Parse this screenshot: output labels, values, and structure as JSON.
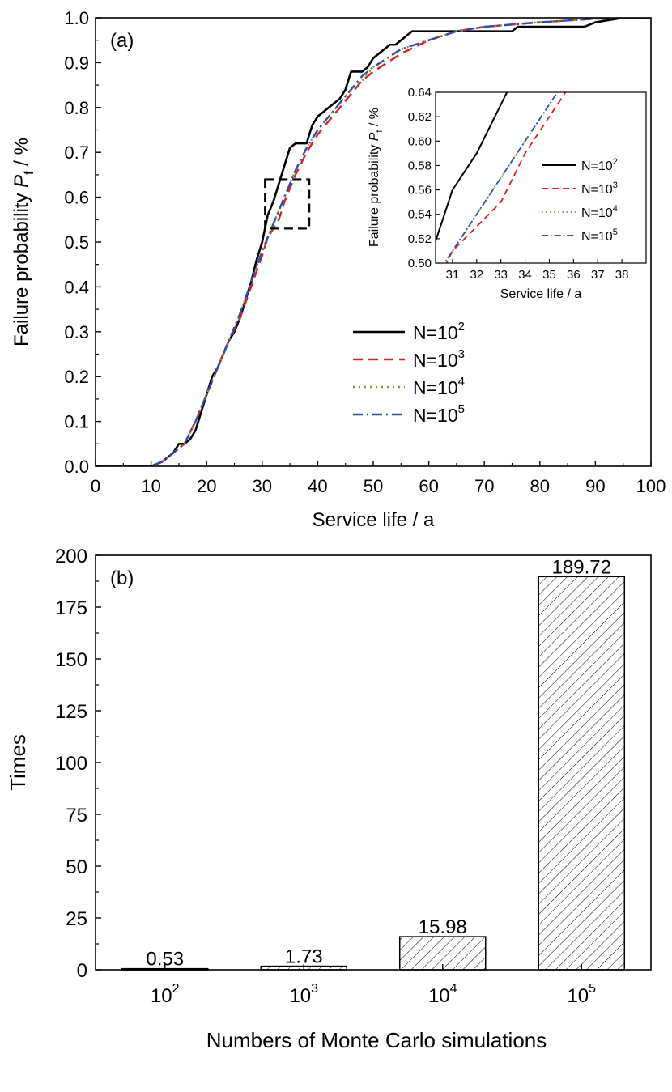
{
  "chart_data": [
    {
      "type": "line",
      "panel_label": "(a)",
      "xlabel": "Service life / a",
      "ylabel_main": "Failure probability ",
      "ylabel_symbol": "P",
      "ylabel_sub": "f",
      "ylabel_unit": " / %",
      "xlim": [
        0,
        100
      ],
      "ylim": [
        0,
        1.0
      ],
      "xticks": [
        "0",
        "10",
        "20",
        "30",
        "40",
        "50",
        "60",
        "70",
        "80",
        "90",
        "100"
      ],
      "yticks": [
        "0.0",
        "0.1",
        "0.2",
        "0.3",
        "0.4",
        "0.5",
        "0.6",
        "0.7",
        "0.8",
        "0.9",
        "1.0"
      ],
      "legend": {
        "position": "bottom-right"
      },
      "series": [
        {
          "base": "N=10",
          "exp": "2",
          "color": "#000000",
          "dash": "solid",
          "points": [
            [
              0,
              0
            ],
            [
              10,
              0
            ],
            [
              11,
              0.005
            ],
            [
              12,
              0.01
            ],
            [
              13,
              0.02
            ],
            [
              14,
              0.03
            ],
            [
              15,
              0.05
            ],
            [
              16,
              0.05
            ],
            [
              17,
              0.06
            ],
            [
              18,
              0.08
            ],
            [
              19,
              0.12
            ],
            [
              20,
              0.16
            ],
            [
              21,
              0.2
            ],
            [
              22,
              0.22
            ],
            [
              23,
              0.25
            ],
            [
              24,
              0.28
            ],
            [
              25,
              0.3
            ],
            [
              26,
              0.33
            ],
            [
              27,
              0.37
            ],
            [
              28,
              0.41
            ],
            [
              29,
              0.46
            ],
            [
              30,
              0.5
            ],
            [
              30.5,
              0.53
            ],
            [
              31,
              0.56
            ],
            [
              32,
              0.59
            ],
            [
              33,
              0.63
            ],
            [
              34,
              0.67
            ],
            [
              35,
              0.71
            ],
            [
              36,
              0.72
            ],
            [
              37,
              0.72
            ],
            [
              38,
              0.72
            ],
            [
              39,
              0.76
            ],
            [
              40,
              0.78
            ],
            [
              41,
              0.79
            ],
            [
              42,
              0.8
            ],
            [
              43,
              0.81
            ],
            [
              44,
              0.82
            ],
            [
              45,
              0.84
            ],
            [
              46,
              0.88
            ],
            [
              47,
              0.88
            ],
            [
              48,
              0.88
            ],
            [
              49,
              0.89
            ],
            [
              50,
              0.91
            ],
            [
              51,
              0.92
            ],
            [
              52,
              0.93
            ],
            [
              53,
              0.94
            ],
            [
              54,
              0.94
            ],
            [
              55,
              0.95
            ],
            [
              56,
              0.96
            ],
            [
              57,
              0.97
            ],
            [
              65,
              0.97
            ],
            [
              70,
              0.97
            ],
            [
              75,
              0.97
            ],
            [
              76,
              0.98
            ],
            [
              80,
              0.98
            ],
            [
              88,
              0.98
            ],
            [
              90,
              0.99
            ],
            [
              95,
              1.0
            ],
            [
              100,
              1.0
            ]
          ]
        },
        {
          "base": "N=10",
          "exp": "3",
          "color": "#e02020",
          "dash": "dashed",
          "points": [
            [
              0,
              0
            ],
            [
              10,
              0
            ],
            [
              12,
              0.01
            ],
            [
              14,
              0.03
            ],
            [
              16,
              0.05
            ],
            [
              18,
              0.1
            ],
            [
              20,
              0.16
            ],
            [
              22,
              0.22
            ],
            [
              24,
              0.28
            ],
            [
              26,
              0.33
            ],
            [
              28,
              0.4
            ],
            [
              30,
              0.47
            ],
            [
              31,
              0.51
            ],
            [
              32,
              0.53
            ],
            [
              33,
              0.55
            ],
            [
              34,
              0.59
            ],
            [
              35,
              0.62
            ],
            [
              36,
              0.65
            ],
            [
              38,
              0.7
            ],
            [
              40,
              0.74
            ],
            [
              42,
              0.77
            ],
            [
              44,
              0.8
            ],
            [
              46,
              0.83
            ],
            [
              48,
              0.86
            ],
            [
              50,
              0.88
            ],
            [
              55,
              0.92
            ],
            [
              60,
              0.95
            ],
            [
              65,
              0.97
            ],
            [
              70,
              0.98
            ],
            [
              80,
              0.99
            ],
            [
              90,
              0.998
            ],
            [
              100,
              1.0
            ]
          ]
        },
        {
          "base": "N=10",
          "exp": "4",
          "color": "#8a9a3c",
          "dash": "dotted",
          "points": [
            [
              0,
              0
            ],
            [
              10,
              0
            ],
            [
              12,
              0.01
            ],
            [
              14,
              0.03
            ],
            [
              16,
              0.05
            ],
            [
              18,
              0.1
            ],
            [
              20,
              0.16
            ],
            [
              22,
              0.22
            ],
            [
              24,
              0.28
            ],
            [
              26,
              0.34
            ],
            [
              28,
              0.41
            ],
            [
              30,
              0.48
            ],
            [
              31,
              0.51
            ],
            [
              32,
              0.54
            ],
            [
              33,
              0.57
            ],
            [
              34,
              0.6
            ],
            [
              35,
              0.63
            ],
            [
              36,
              0.66
            ],
            [
              38,
              0.71
            ],
            [
              40,
              0.75
            ],
            [
              42,
              0.78
            ],
            [
              44,
              0.81
            ],
            [
              46,
              0.84
            ],
            [
              48,
              0.86
            ],
            [
              50,
              0.89
            ],
            [
              55,
              0.93
            ],
            [
              60,
              0.95
            ],
            [
              65,
              0.97
            ],
            [
              70,
              0.98
            ],
            [
              80,
              0.99
            ],
            [
              90,
              0.998
            ],
            [
              100,
              1.0
            ]
          ]
        },
        {
          "base": "N=10",
          "exp": "5",
          "color": "#2a4fb0",
          "dash": "dashdot",
          "points": [
            [
              0,
              0
            ],
            [
              10,
              0
            ],
            [
              12,
              0.01
            ],
            [
              14,
              0.03
            ],
            [
              16,
              0.05
            ],
            [
              18,
              0.1
            ],
            [
              20,
              0.16
            ],
            [
              22,
              0.22
            ],
            [
              24,
              0.28
            ],
            [
              26,
              0.34
            ],
            [
              28,
              0.41
            ],
            [
              30,
              0.48
            ],
            [
              31,
              0.51
            ],
            [
              32,
              0.54
            ],
            [
              33,
              0.57
            ],
            [
              34,
              0.6
            ],
            [
              35,
              0.63
            ],
            [
              36,
              0.66
            ],
            [
              38,
              0.71
            ],
            [
              40,
              0.75
            ],
            [
              42,
              0.78
            ],
            [
              44,
              0.81
            ],
            [
              46,
              0.84
            ],
            [
              48,
              0.87
            ],
            [
              50,
              0.89
            ],
            [
              55,
              0.93
            ],
            [
              60,
              0.95
            ],
            [
              65,
              0.97
            ],
            [
              70,
              0.98
            ],
            [
              80,
              0.99
            ],
            [
              90,
              0.998
            ],
            [
              100,
              1.0
            ]
          ]
        }
      ],
      "zoom_box": {
        "x": [
          30.5,
          38.5
        ],
        "y": [
          0.53,
          0.64
        ]
      },
      "inset": {
        "xlabel": "Service life / a",
        "ylabel_main": "Failure probability  ",
        "ylabel_symbol": "P",
        "ylabel_sub": "f",
        "ylabel_unit": " / %",
        "xlim": [
          30.3,
          39
        ],
        "ylim": [
          0.5,
          0.64
        ],
        "xticks": [
          "31",
          "32",
          "33",
          "34",
          "35",
          "36",
          "37",
          "38"
        ],
        "yticks": [
          "0.50",
          "0.52",
          "0.54",
          "0.56",
          "0.58",
          "0.60",
          "0.62",
          "0.64"
        ]
      }
    },
    {
      "type": "bar",
      "panel_label": "(b)",
      "xlabel": "Numbers of Monte Carlo simulations",
      "ylabel": "Times",
      "ylim": [
        0,
        200
      ],
      "yticks": [
        "0",
        "25",
        "50",
        "75",
        "100",
        "125",
        "150",
        "175",
        "200"
      ],
      "category_base": "10",
      "category_exps": [
        "2",
        "3",
        "4",
        "5"
      ],
      "values": [
        0.53,
        1.73,
        15.98,
        189.72
      ],
      "value_labels": [
        "0.53",
        "1.73",
        "15.98",
        "189.72"
      ]
    }
  ]
}
